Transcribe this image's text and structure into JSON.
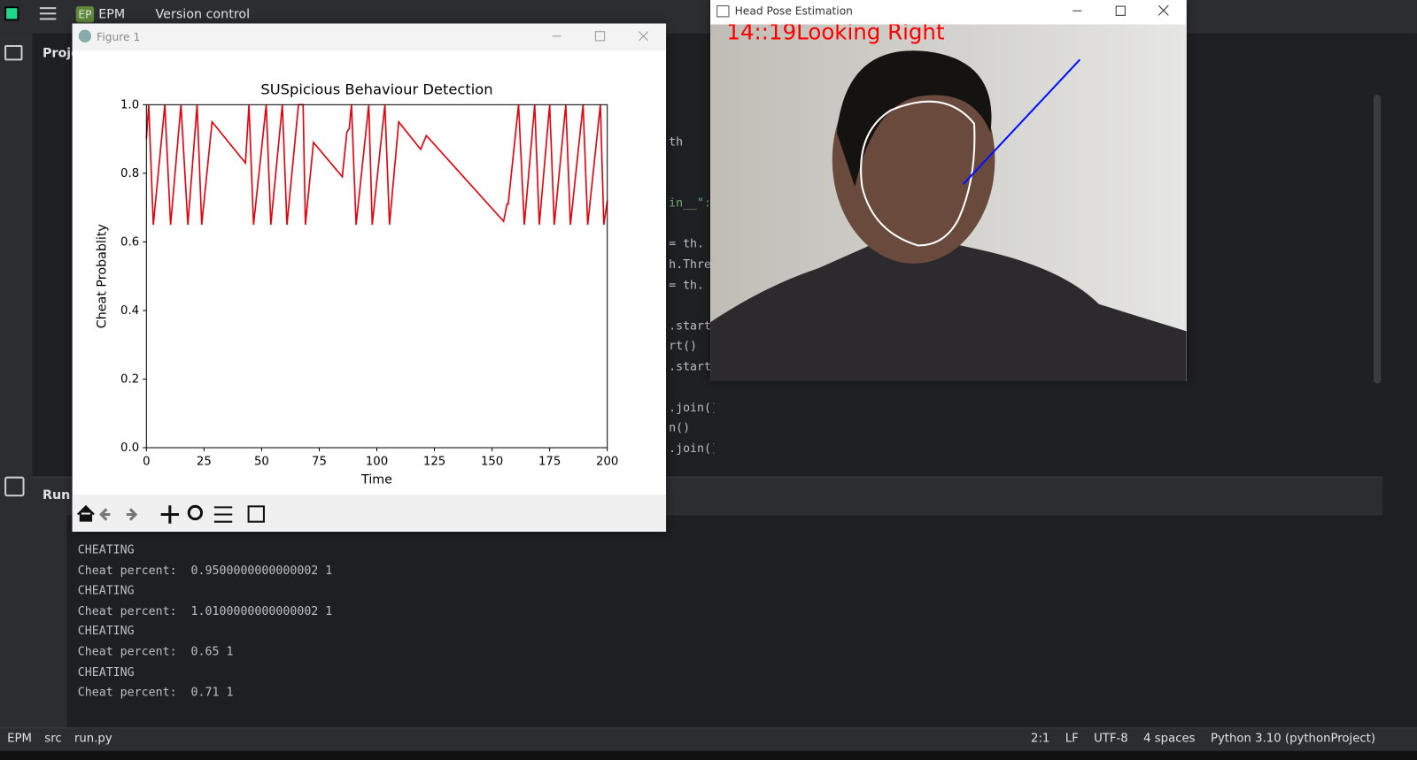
{
  "ide": {
    "project_badge": "EP",
    "project": "EPM",
    "vcs": "Version control",
    "project_tab": "Proje",
    "run_tab": "Run",
    "code_lines": [
      "th",
      "in__\":",
      "= th.",
      "h.Thre",
      "= th.",
      ".start",
      "rt()",
      ".start",
      ".join()",
      "n()",
      ".join()"
    ],
    "console": [
      "CHEATING",
      "Cheat percent:  0.9500000000000002 1",
      "CHEATING",
      "Cheat percent:  1.0100000000000002 1",
      "CHEATING",
      "Cheat percent:  0.65 1",
      "CHEATING",
      "Cheat percent:  0.71 1"
    ],
    "breadcrumb": [
      "EPM",
      "src",
      "run.py"
    ],
    "status": [
      "2:1",
      "LF",
      "UTF-8",
      "4 spaces",
      "Python 3.10 (pythonProject)"
    ]
  },
  "figure_window": {
    "title": "Figure 1"
  },
  "camera_window": {
    "title": "Head Pose Estimation",
    "overlay": "14::19Looking Right"
  },
  "chart_data": {
    "type": "line",
    "title": "SUSpicious Behaviour Detection",
    "x_label": "Time",
    "y_label": "Cheat Probablity",
    "color": "#e8000b",
    "x": [
      0,
      1,
      3,
      8,
      10.5,
      15,
      18,
      22,
      24,
      28.5,
      43,
      44.5,
      46.5,
      52,
      54,
      59,
      61,
      66,
      68,
      69,
      72.5,
      85,
      87,
      88,
      89,
      91,
      96.5,
      98,
      103.5,
      105.5,
      109.5,
      119,
      121.5,
      155,
      156.5,
      157,
      161.5,
      164,
      168.5,
      170.5,
      175,
      177,
      182,
      184,
      189.5,
      191.5,
      197,
      198.5,
      200
    ],
    "values": [
      0.9,
      1.0,
      0.65,
      1.0,
      0.65,
      1.0,
      0.65,
      1.0,
      0.65,
      0.95,
      0.83,
      1.0,
      0.65,
      1.0,
      0.65,
      1.0,
      0.65,
      1.0,
      1.0,
      0.65,
      0.89,
      0.79,
      0.92,
      0.93,
      1.0,
      0.65,
      1.0,
      0.65,
      1.0,
      0.65,
      0.95,
      0.87,
      0.91,
      0.66,
      0.71,
      0.71,
      1.0,
      0.65,
      1.0,
      0.65,
      1.0,
      0.65,
      1.0,
      0.65,
      1.0,
      0.65,
      1.0,
      0.65,
      0.72
    ],
    "xlim": [
      0,
      200
    ],
    "ylim": [
      0,
      1
    ],
    "xticks": [
      0,
      25,
      50,
      75,
      100,
      125,
      150,
      175,
      200
    ],
    "yticks": [
      {
        "value": 0,
        "label": "0.0"
      },
      0.2,
      0.4,
      0.6,
      0.8,
      {
        "value": 1,
        "label": "1.0"
      }
    ]
  }
}
